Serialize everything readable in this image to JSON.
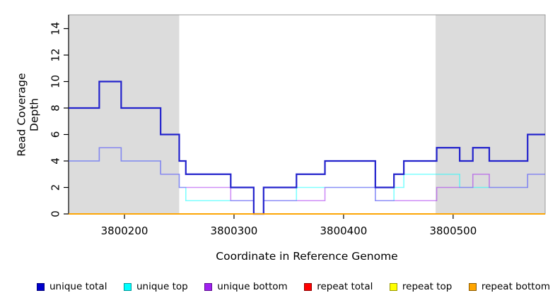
{
  "chart_data": {
    "type": "line",
    "subtype": "step",
    "title": "",
    "xlabel": "Coordinate in Reference Genome",
    "ylabel": "Read Coverage Depth",
    "x_domain": [
      3800149,
      3800584
    ],
    "x_ticks": [
      3800200,
      3800300,
      3800400,
      3800500
    ],
    "y_axis": {
      "ticks": [
        0,
        2,
        4,
        6,
        8,
        10,
        12,
        14
      ],
      "max": 15.04
    },
    "grid": "off",
    "legend_position": "bottom",
    "shade_color": "#DCDCDC",
    "shaded_regions": [
      {
        "x0": 3800149,
        "x1": 3800250
      },
      {
        "x0": 3800484,
        "x1": 3800584
      }
    ],
    "series": [
      {
        "name": "unique-top",
        "label": "unique top",
        "color": "#00FFFF",
        "opacity": 0.5,
        "width": 1.6,
        "points": [
          [
            3800149,
            4
          ],
          [
            3800177,
            5
          ],
          [
            3800197,
            4
          ],
          [
            3800233,
            3
          ],
          [
            3800250,
            2
          ],
          [
            3800256,
            1
          ],
          [
            3800318,
            0
          ],
          [
            3800327,
            1
          ],
          [
            3800357,
            2
          ],
          [
            3800429,
            1
          ],
          [
            3800446,
            2
          ],
          [
            3800455,
            3
          ],
          [
            3800506,
            2
          ],
          [
            3800568,
            3
          ]
        ]
      },
      {
        "name": "unique-bottom",
        "label": "unique bottom",
        "color": "#A020F0",
        "opacity": 0.5,
        "width": 1.6,
        "points": [
          [
            3800149,
            4
          ],
          [
            3800177,
            5
          ],
          [
            3800197,
            4
          ],
          [
            3800233,
            3
          ],
          [
            3800250,
            2
          ],
          [
            3800297,
            1
          ],
          [
            3800318,
            0
          ],
          [
            3800327,
            1
          ],
          [
            3800383,
            2
          ],
          [
            3800429,
            1
          ],
          [
            3800485,
            2
          ],
          [
            3800518,
            3
          ],
          [
            3800533,
            2
          ],
          [
            3800568,
            3
          ]
        ]
      },
      {
        "name": "unique-total",
        "label": "unique total",
        "color": "#2222CC",
        "opacity": 1,
        "width": 2.2,
        "points": [
          [
            3800149,
            8
          ],
          [
            3800177,
            10
          ],
          [
            3800197,
            8
          ],
          [
            3800233,
            6
          ],
          [
            3800250,
            4
          ],
          [
            3800256,
            3
          ],
          [
            3800297,
            2
          ],
          [
            3800318,
            0
          ],
          [
            3800327,
            2
          ],
          [
            3800357,
            3
          ],
          [
            3800383,
            4
          ],
          [
            3800429,
            2
          ],
          [
            3800446,
            3
          ],
          [
            3800455,
            4
          ],
          [
            3800485,
            5
          ],
          [
            3800506,
            4
          ],
          [
            3800518,
            5
          ],
          [
            3800533,
            4
          ],
          [
            3800568,
            6
          ]
        ]
      },
      {
        "name": "repeat-total",
        "label": "repeat total",
        "color": "#FF0000",
        "opacity": 1,
        "width": 1.6,
        "points": [
          [
            3800149,
            0
          ]
        ]
      },
      {
        "name": "repeat-top",
        "label": "repeat top",
        "color": "#FFFF00",
        "opacity": 1,
        "width": 1.6,
        "points": [
          [
            3800149,
            0
          ]
        ]
      },
      {
        "name": "repeat-bottom",
        "label": "repeat bottom",
        "color": "#FFA500",
        "opacity": 1,
        "width": 1.8,
        "points": [
          [
            3800149,
            0
          ]
        ]
      }
    ],
    "legend": [
      {
        "name": "unique-total",
        "label": "unique total",
        "fill": "#0000CC",
        "border": "#00007A"
      },
      {
        "name": "unique-top",
        "label": "unique top",
        "fill": "#00FFFF",
        "border": "#009999"
      },
      {
        "name": "unique-bottom",
        "label": "unique bottom",
        "fill": "#A020F0",
        "border": "#5E0D91"
      },
      {
        "name": "repeat-total",
        "label": "repeat total",
        "fill": "#FF0000",
        "border": "#8F0000"
      },
      {
        "name": "repeat-top",
        "label": "repeat top",
        "fill": "#FFFF00",
        "border": "#999900"
      },
      {
        "name": "repeat-bottom",
        "label": "repeat bottom",
        "fill": "#FFA500",
        "border": "#8A5A00"
      }
    ]
  }
}
